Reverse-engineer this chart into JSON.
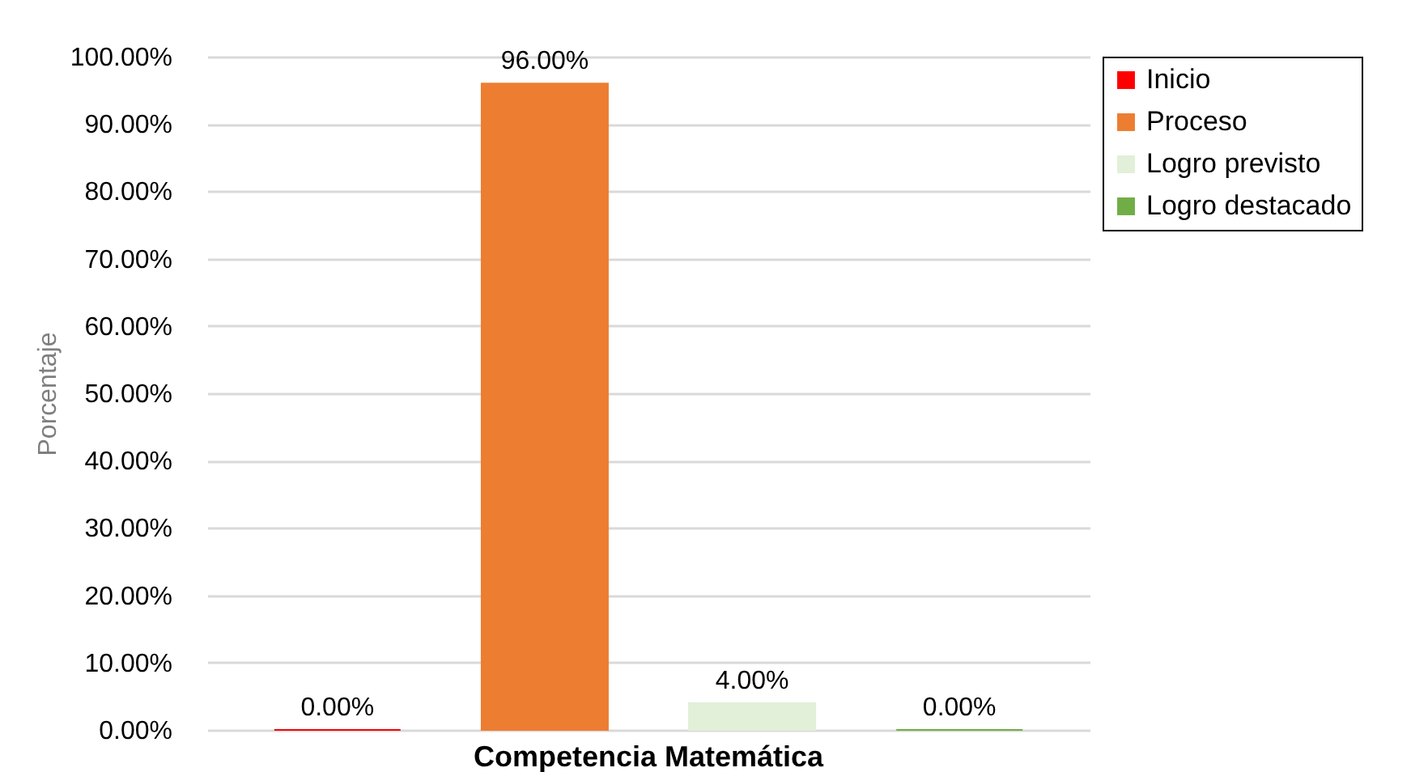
{
  "chart_data": {
    "type": "bar",
    "ylabel": "Porcentaje",
    "categories": [
      "Competencia Matemática"
    ],
    "series": [
      {
        "name": "Inicio",
        "color": "#ff0000",
        "values": [
          0
        ],
        "value_labels": [
          "0.00%"
        ]
      },
      {
        "name": "Proceso",
        "color": "#ed7d31",
        "values": [
          96
        ],
        "value_labels": [
          "96.00%"
        ]
      },
      {
        "name": "Logro previsto",
        "color": "#e2efd9",
        "values": [
          4
        ],
        "value_labels": [
          "4.00%"
        ]
      },
      {
        "name": "Logro destacado",
        "color": "#70ad47",
        "values": [
          0
        ],
        "value_labels": [
          "0.00%"
        ]
      }
    ],
    "ylim": [
      0,
      100
    ],
    "yticks": [
      {
        "value": 0,
        "label": "0.00%"
      },
      {
        "value": 10,
        "label": "10.00%"
      },
      {
        "value": 20,
        "label": "20.00%"
      },
      {
        "value": 30,
        "label": "30.00%"
      },
      {
        "value": 40,
        "label": "40.00%"
      },
      {
        "value": 50,
        "label": "50.00%"
      },
      {
        "value": 60,
        "label": "60.00%"
      },
      {
        "value": 70,
        "label": "70.00%"
      },
      {
        "value": 80,
        "label": "80.00%"
      },
      {
        "value": 90,
        "label": "90.00%"
      },
      {
        "value": 100,
        "label": "100.00%"
      }
    ],
    "grid": "y",
    "legend": "right"
  }
}
